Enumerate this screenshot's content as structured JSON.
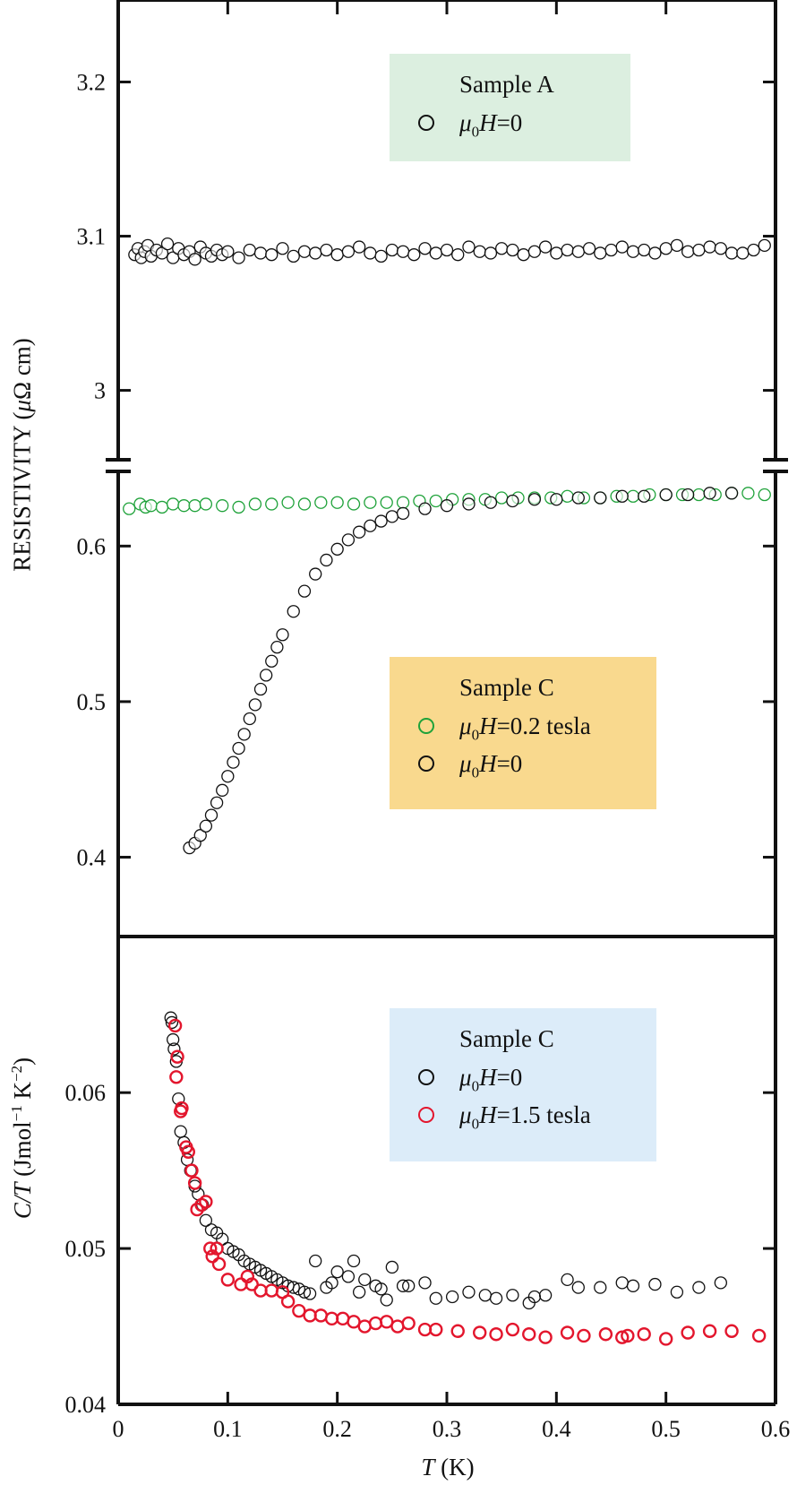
{
  "chart_data": [
    {
      "type": "scatter",
      "panel": "top",
      "ylabel": {
        "text": "RESISTIVITY (",
        "mu": "μ",
        "rest": "Ω cm)"
      },
      "ylim": [
        2.955,
        3.252
      ],
      "yticks": [
        "3",
        "3.1",
        "3.2"
      ],
      "ytick_values": [
        3.0,
        3.1,
        3.2
      ],
      "legend": {
        "title": "Sample A",
        "entries": [
          {
            "mu": "μ",
            "sub": "0",
            "var": "H",
            "value": "=0",
            "color": "#111111"
          }
        ]
      },
      "series": [
        {
          "name": "Sample A, μ0H=0",
          "color": "#111111",
          "x": [
            0.015,
            0.018,
            0.021,
            0.024,
            0.027,
            0.03,
            0.035,
            0.04,
            0.045,
            0.05,
            0.055,
            0.06,
            0.065,
            0.07,
            0.075,
            0.08,
            0.085,
            0.09,
            0.095,
            0.1,
            0.11,
            0.12,
            0.13,
            0.14,
            0.15,
            0.16,
            0.17,
            0.18,
            0.19,
            0.2,
            0.21,
            0.22,
            0.23,
            0.24,
            0.25,
            0.26,
            0.27,
            0.28,
            0.29,
            0.3,
            0.31,
            0.32,
            0.33,
            0.34,
            0.35,
            0.36,
            0.37,
            0.38,
            0.39,
            0.4,
            0.41,
            0.42,
            0.43,
            0.44,
            0.45,
            0.46,
            0.47,
            0.48,
            0.49,
            0.5,
            0.51,
            0.52,
            0.53,
            0.54,
            0.55,
            0.56,
            0.57,
            0.58,
            0.59
          ],
          "y": [
            3.088,
            3.092,
            3.086,
            3.09,
            3.094,
            3.087,
            3.091,
            3.089,
            3.095,
            3.086,
            3.092,
            3.088,
            3.09,
            3.085,
            3.093,
            3.089,
            3.087,
            3.091,
            3.088,
            3.09,
            3.086,
            3.091,
            3.089,
            3.088,
            3.092,
            3.087,
            3.09,
            3.089,
            3.091,
            3.088,
            3.09,
            3.093,
            3.089,
            3.087,
            3.091,
            3.09,
            3.088,
            3.092,
            3.089,
            3.091,
            3.088,
            3.093,
            3.09,
            3.089,
            3.092,
            3.091,
            3.088,
            3.09,
            3.093,
            3.089,
            3.091,
            3.09,
            3.092,
            3.089,
            3.091,
            3.093,
            3.09,
            3.091,
            3.089,
            3.092,
            3.094,
            3.09,
            3.091,
            3.093,
            3.092,
            3.089,
            3.089,
            3.091,
            3.094
          ]
        }
      ]
    },
    {
      "type": "scatter",
      "panel": "middle",
      "ylim": [
        0.349,
        0.648
      ],
      "yticks": [
        "0.4",
        "0.5",
        "0.6"
      ],
      "ytick_values": [
        0.4,
        0.5,
        0.6
      ],
      "legend": {
        "title": "Sample C",
        "entries": [
          {
            "mu": "μ",
            "sub": "0",
            "var": "H",
            "value": "=0.2 tesla",
            "color": "#1fa23a"
          },
          {
            "mu": "μ",
            "sub": "0",
            "var": "H",
            "value": "=0",
            "color": "#111111"
          }
        ]
      },
      "series": [
        {
          "name": "Sample C, μ0H=0.2 tesla",
          "color": "#1fa23a",
          "x": [
            0.01,
            0.02,
            0.025,
            0.03,
            0.04,
            0.05,
            0.06,
            0.07,
            0.08,
            0.095,
            0.11,
            0.125,
            0.14,
            0.155,
            0.17,
            0.185,
            0.2,
            0.215,
            0.23,
            0.245,
            0.26,
            0.275,
            0.29,
            0.305,
            0.32,
            0.335,
            0.35,
            0.365,
            0.38,
            0.395,
            0.41,
            0.425,
            0.44,
            0.455,
            0.47,
            0.485,
            0.5,
            0.515,
            0.53,
            0.545,
            0.56,
            0.575,
            0.59
          ],
          "y": [
            0.624,
            0.627,
            0.625,
            0.626,
            0.625,
            0.627,
            0.626,
            0.626,
            0.627,
            0.626,
            0.625,
            0.627,
            0.627,
            0.628,
            0.627,
            0.628,
            0.628,
            0.627,
            0.628,
            0.628,
            0.628,
            0.629,
            0.629,
            0.63,
            0.63,
            0.63,
            0.631,
            0.631,
            0.631,
            0.631,
            0.632,
            0.631,
            0.631,
            0.632,
            0.632,
            0.633,
            0.633,
            0.633,
            0.633,
            0.633,
            0.634,
            0.634,
            0.633
          ]
        },
        {
          "name": "Sample C, μ0H=0",
          "color": "#111111",
          "x": [
            0.065,
            0.07,
            0.075,
            0.08,
            0.085,
            0.09,
            0.095,
            0.1,
            0.105,
            0.11,
            0.115,
            0.12,
            0.125,
            0.13,
            0.135,
            0.14,
            0.145,
            0.15,
            0.16,
            0.17,
            0.18,
            0.19,
            0.2,
            0.21,
            0.22,
            0.23,
            0.24,
            0.25,
            0.26,
            0.28,
            0.3,
            0.32,
            0.34,
            0.36,
            0.38,
            0.4,
            0.42,
            0.44,
            0.46,
            0.48,
            0.5,
            0.52,
            0.54,
            0.56
          ],
          "y": [
            0.406,
            0.409,
            0.414,
            0.42,
            0.427,
            0.435,
            0.443,
            0.452,
            0.461,
            0.47,
            0.479,
            0.489,
            0.498,
            0.508,
            0.517,
            0.526,
            0.535,
            0.543,
            0.558,
            0.571,
            0.582,
            0.591,
            0.598,
            0.604,
            0.609,
            0.613,
            0.616,
            0.619,
            0.621,
            0.624,
            0.626,
            0.627,
            0.628,
            0.629,
            0.63,
            0.63,
            0.631,
            0.631,
            0.632,
            0.632,
            0.633,
            0.633,
            0.634,
            0.634
          ]
        }
      ]
    },
    {
      "type": "scatter",
      "panel": "bottom",
      "xlabel": {
        "var": "T",
        "unit": " (K)"
      },
      "ylabel": {
        "var": "C/T",
        "unit1": " (Jmol",
        "sup1": "−1",
        "unit2": " K",
        "sup2": "−2",
        "close": ")"
      },
      "xlim": [
        0,
        0.6
      ],
      "xticks": [
        "0",
        "0.1",
        "0.2",
        "0.3",
        "0.4",
        "0.5",
        "0.6"
      ],
      "xtick_values": [
        0,
        0.1,
        0.2,
        0.3,
        0.4,
        0.5,
        0.6
      ],
      "ylim": [
        0.04,
        0.0699
      ],
      "yticks": [
        "0.04",
        "0.05",
        "0.06"
      ],
      "ytick_values": [
        0.04,
        0.05,
        0.06
      ],
      "legend": {
        "title": "Sample C",
        "entries": [
          {
            "mu": "μ",
            "sub": "0",
            "var": "H",
            "value": "=0",
            "color": "#111111"
          },
          {
            "mu": "μ",
            "sub": "0",
            "var": "H",
            "value": "=1.5 tesla",
            "color": "#e3162d"
          }
        ]
      },
      "series": [
        {
          "name": "Sample C, μ0H=0",
          "color": "#111111",
          "x": [
            0.048,
            0.049,
            0.05,
            0.051,
            0.053,
            0.055,
            0.057,
            0.06,
            0.063,
            0.066,
            0.07,
            0.073,
            0.077,
            0.08,
            0.085,
            0.09,
            0.095,
            0.1,
            0.105,
            0.11,
            0.115,
            0.12,
            0.125,
            0.13,
            0.135,
            0.14,
            0.145,
            0.15,
            0.155,
            0.16,
            0.165,
            0.17,
            0.175,
            0.18,
            0.19,
            0.195,
            0.2,
            0.21,
            0.215,
            0.22,
            0.225,
            0.235,
            0.24,
            0.245,
            0.25,
            0.26,
            0.265,
            0.28,
            0.29,
            0.305,
            0.32,
            0.335,
            0.345,
            0.36,
            0.375,
            0.38,
            0.39,
            0.41,
            0.42,
            0.44,
            0.46,
            0.47,
            0.49,
            0.51,
            0.53,
            0.55
          ],
          "y": [
            0.0648,
            0.0645,
            0.0634,
            0.0628,
            0.062,
            0.0596,
            0.0575,
            0.0568,
            0.0557,
            0.055,
            0.054,
            0.0535,
            0.0528,
            0.0518,
            0.0512,
            0.051,
            0.0506,
            0.05,
            0.0498,
            0.0496,
            0.0492,
            0.049,
            0.0488,
            0.0486,
            0.0484,
            0.0482,
            0.048,
            0.0478,
            0.0476,
            0.0475,
            0.0474,
            0.0472,
            0.0471,
            0.0492,
            0.0475,
            0.0478,
            0.0485,
            0.0482,
            0.0492,
            0.0472,
            0.048,
            0.0476,
            0.0474,
            0.0467,
            0.0488,
            0.0476,
            0.0476,
            0.0478,
            0.0468,
            0.0469,
            0.0472,
            0.047,
            0.0468,
            0.047,
            0.0465,
            0.0469,
            0.047,
            0.048,
            0.0475,
            0.0475,
            0.0478,
            0.0476,
            0.0477,
            0.0472,
            0.0475,
            0.0478
          ]
        },
        {
          "name": "Sample C, μ0H=1.5 tesla",
          "color": "#e3162d",
          "x": [
            0.052,
            0.054,
            0.053,
            0.058,
            0.057,
            0.062,
            0.064,
            0.067,
            0.07,
            0.072,
            0.076,
            0.08,
            0.084,
            0.086,
            0.09,
            0.092,
            0.1,
            0.112,
            0.118,
            0.122,
            0.13,
            0.14,
            0.15,
            0.155,
            0.165,
            0.175,
            0.185,
            0.195,
            0.205,
            0.215,
            0.225,
            0.235,
            0.245,
            0.255,
            0.265,
            0.28,
            0.29,
            0.31,
            0.33,
            0.345,
            0.36,
            0.375,
            0.39,
            0.41,
            0.425,
            0.445,
            0.46,
            0.465,
            0.48,
            0.5,
            0.52,
            0.54,
            0.56,
            0.585
          ],
          "y": [
            0.0643,
            0.0623,
            0.061,
            0.059,
            0.0588,
            0.0565,
            0.0562,
            0.055,
            0.0542,
            0.0525,
            0.0528,
            0.053,
            0.05,
            0.0495,
            0.05,
            0.049,
            0.048,
            0.0477,
            0.0482,
            0.0477,
            0.0473,
            0.0473,
            0.0472,
            0.0466,
            0.046,
            0.0457,
            0.0457,
            0.0455,
            0.0455,
            0.0453,
            0.045,
            0.0452,
            0.0453,
            0.045,
            0.0452,
            0.0448,
            0.0448,
            0.0447,
            0.0446,
            0.0445,
            0.0448,
            0.0445,
            0.0443,
            0.0446,
            0.0444,
            0.0445,
            0.0443,
            0.0444,
            0.0445,
            0.0442,
            0.0446,
            0.0447,
            0.0447,
            0.0444
          ]
        }
      ]
    }
  ]
}
